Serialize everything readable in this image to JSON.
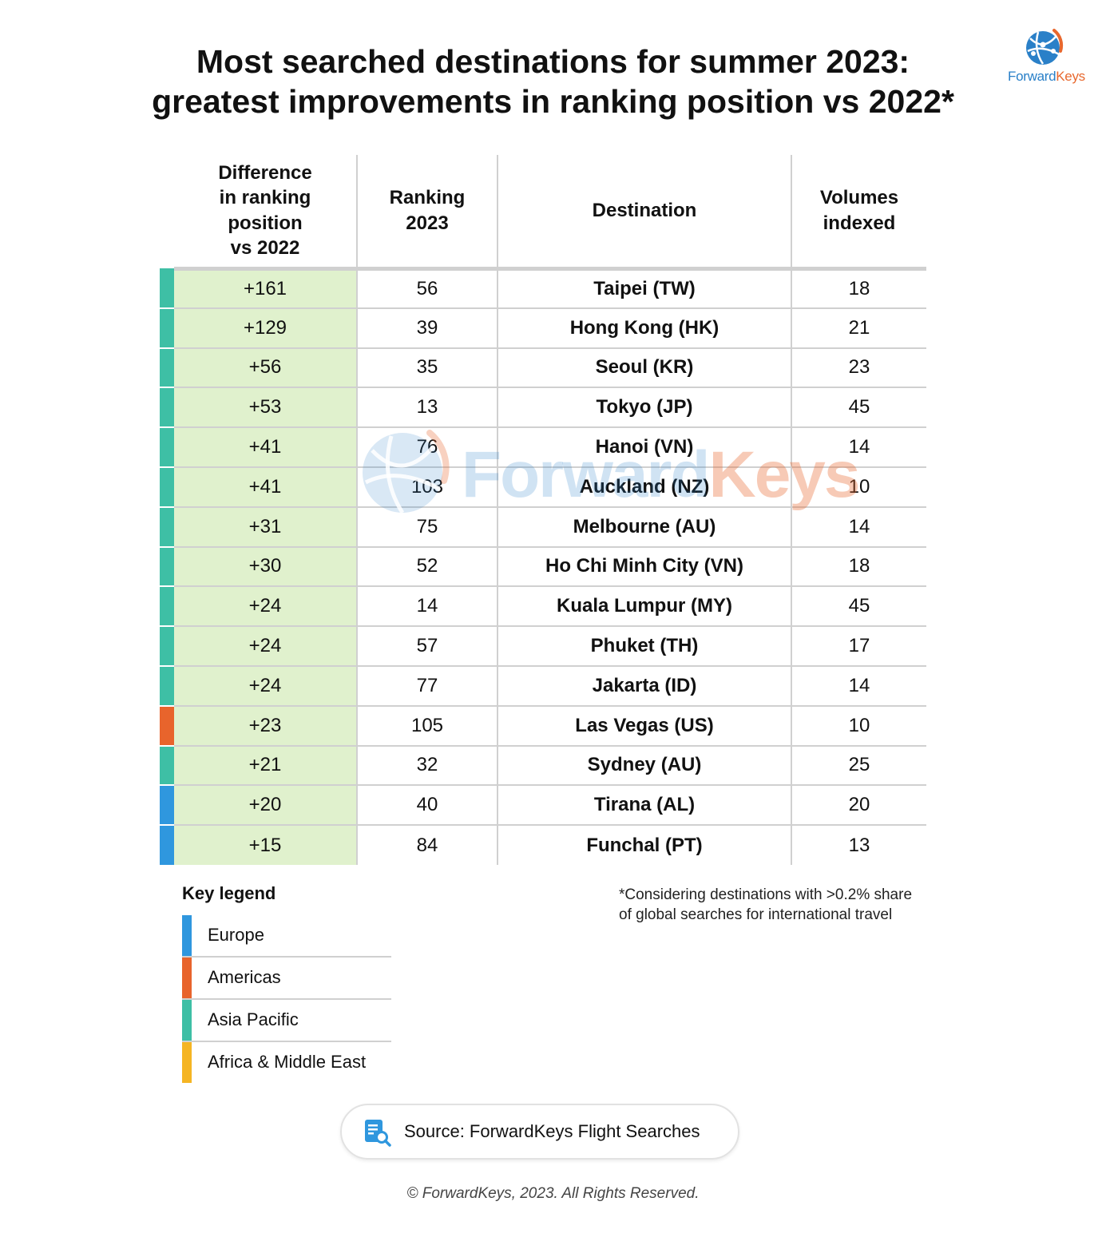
{
  "title": {
    "line1": "Most searched destinations for summer 2023:",
    "line2": "greatest improvements in ranking position vs 2022*"
  },
  "logo": {
    "part1": "Forward",
    "part2": "Keys"
  },
  "colors": {
    "europe": "#2f97de",
    "americas": "#e8642c",
    "asia_pacific": "#3ebfa5",
    "africa_middle_east": "#f5b523",
    "diff_cell_bg": "#e0f1cd",
    "logo_blue": "#2a80c8",
    "logo_orange": "#e8682e"
  },
  "chart_data": {
    "type": "table",
    "columns": [
      "Difference in ranking position vs 2022",
      "Ranking 2023",
      "Destination",
      "Volumes indexed"
    ],
    "header_lines": {
      "diff": [
        "Difference",
        "in ranking",
        "position",
        "vs 2022"
      ],
      "rank": [
        "Ranking",
        "2023"
      ],
      "dest": [
        "Destination"
      ],
      "vol": [
        "Volumes",
        "indexed"
      ]
    },
    "rows": [
      {
        "region": "asia_pacific",
        "diff": "+161",
        "rank": "56",
        "destination": "Taipei (TW)",
        "volume": "18"
      },
      {
        "region": "asia_pacific",
        "diff": "+129",
        "rank": "39",
        "destination": "Hong Kong (HK)",
        "volume": "21"
      },
      {
        "region": "asia_pacific",
        "diff": "+56",
        "rank": "35",
        "destination": "Seoul (KR)",
        "volume": "23"
      },
      {
        "region": "asia_pacific",
        "diff": "+53",
        "rank": "13",
        "destination": "Tokyo (JP)",
        "volume": "45"
      },
      {
        "region": "asia_pacific",
        "diff": "+41",
        "rank": "76",
        "destination": "Hanoi (VN)",
        "volume": "14"
      },
      {
        "region": "asia_pacific",
        "diff": "+41",
        "rank": "103",
        "destination": "Auckland (NZ)",
        "volume": "10"
      },
      {
        "region": "asia_pacific",
        "diff": "+31",
        "rank": "75",
        "destination": "Melbourne (AU)",
        "volume": "14"
      },
      {
        "region": "asia_pacific",
        "diff": "+30",
        "rank": "52",
        "destination": "Ho Chi Minh City (VN)",
        "volume": "18"
      },
      {
        "region": "asia_pacific",
        "diff": "+24",
        "rank": "14",
        "destination": "Kuala Lumpur (MY)",
        "volume": "45"
      },
      {
        "region": "asia_pacific",
        "diff": "+24",
        "rank": "57",
        "destination": "Phuket (TH)",
        "volume": "17"
      },
      {
        "region": "asia_pacific",
        "diff": "+24",
        "rank": "77",
        "destination": "Jakarta (ID)",
        "volume": "14"
      },
      {
        "region": "americas",
        "diff": "+23",
        "rank": "105",
        "destination": "Las Vegas (US)",
        "volume": "10"
      },
      {
        "region": "asia_pacific",
        "diff": "+21",
        "rank": "32",
        "destination": "Sydney (AU)",
        "volume": "25"
      },
      {
        "region": "europe",
        "diff": "+20",
        "rank": "40",
        "destination": "Tirana (AL)",
        "volume": "20"
      },
      {
        "region": "europe",
        "diff": "+15",
        "rank": "84",
        "destination": "Funchal (PT)",
        "volume": "13"
      }
    ]
  },
  "legend": {
    "title": "Key legend",
    "items": [
      {
        "region": "europe",
        "label": "Europe"
      },
      {
        "region": "americas",
        "label": "Americas"
      },
      {
        "region": "asia_pacific",
        "label": "Asia Pacific"
      },
      {
        "region": "africa_middle_east",
        "label": "Africa & Middle East"
      }
    ]
  },
  "footnote": {
    "line1": "*Considering destinations with >0.2% share",
    "line2": "of global searches for international travel"
  },
  "source": {
    "label": "Source: ForwardKeys Flight Searches",
    "icon": "document-search-icon"
  },
  "copyright": "© ForwardKeys, 2023. All Rights Reserved."
}
